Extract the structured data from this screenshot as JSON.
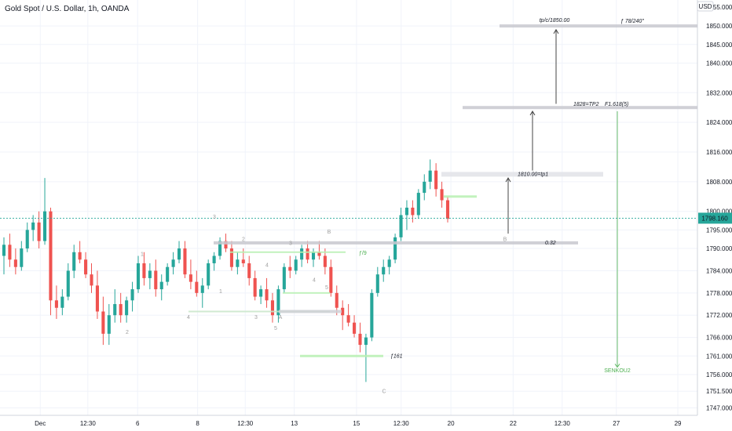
{
  "header": {
    "title": "Gold Spot / U.S. Dollar, 1h, OANDA"
  },
  "chart_data": {
    "type": "candlestick",
    "currency_label": "USD",
    "ylim": [
      1745,
      1857
    ],
    "price_ticks": [
      1850,
      1845,
      1840,
      1832,
      1824,
      1816,
      1808,
      1800,
      1795,
      1790,
      1784,
      1778,
      1772,
      1766,
      1761,
      1756,
      1751.5,
      1747
    ],
    "price_tick_labels": [
      "1850.000",
      "1845.000",
      "1840.000",
      "1832.000",
      "1824.000",
      "1816.000",
      "1808.000",
      "1800.000",
      "1795.000",
      "1790.000",
      "1784.000",
      "1778.000",
      "1772.000",
      "1766.000",
      "1761.000",
      "1756.000",
      "1751.500",
      "1747.000"
    ],
    "top_partial_label": "1855.000",
    "current_price": "1798.160",
    "current_price_value": 1798.16,
    "time_ticks": [
      "Dec",
      "12:30",
      "6",
      "8",
      "12:30",
      "13",
      "15",
      "12:30",
      "20",
      "22",
      "12:30",
      "27",
      "29"
    ],
    "time_tick_x": [
      0.055,
      0.12,
      0.188,
      0.27,
      0.335,
      0.402,
      0.487,
      0.548,
      0.616,
      0.701,
      0.768,
      0.842,
      0.926
    ],
    "colors": {
      "up": "#26a69a",
      "down": "#ef5350",
      "level": "#c8c8cf",
      "green_level": "#b7f0b1",
      "fib": "#4caf50"
    },
    "levels": [
      {
        "label": "tp/c/1850.00",
        "price": 1850.0
      },
      {
        "label": "ƒ 78/240\"",
        "price": 1850.0
      },
      {
        "label": "1828=TP2",
        "price": 1828.0
      },
      {
        "label": "F1.618(5)",
        "price": 1828.0
      },
      {
        "label": "1810.00=tp1",
        "price": 1810.0
      },
      {
        "label": "0.32",
        "price": 1791.5
      },
      {
        "label": "ƒ/9",
        "price": 1789.0
      },
      {
        "label": "ƒ161",
        "price": 1761.0
      },
      {
        "label": "SENKOU2",
        "price": 1757.0
      }
    ],
    "wave_labels": [
      "3",
      "1",
      "2",
      "4",
      "1",
      "2",
      "3",
      "4",
      "5",
      "3",
      "4",
      "A",
      "B",
      "5",
      "B",
      "C"
    ],
    "candles": [
      {
        "o": 1788,
        "h": 1793,
        "l": 1783,
        "c": 1791
      },
      {
        "o": 1791,
        "h": 1794,
        "l": 1785,
        "c": 1787
      },
      {
        "o": 1787,
        "h": 1790,
        "l": 1783,
        "c": 1785
      },
      {
        "o": 1785,
        "h": 1792,
        "l": 1784,
        "c": 1790
      },
      {
        "o": 1790,
        "h": 1797,
        "l": 1789,
        "c": 1795
      },
      {
        "o": 1795,
        "h": 1799,
        "l": 1792,
        "c": 1797
      },
      {
        "o": 1797,
        "h": 1800,
        "l": 1790,
        "c": 1792
      },
      {
        "o": 1792,
        "h": 1809,
        "l": 1791,
        "c": 1800
      },
      {
        "o": 1800,
        "h": 1801,
        "l": 1772,
        "c": 1776
      },
      {
        "o": 1776,
        "h": 1780,
        "l": 1771,
        "c": 1774
      },
      {
        "o": 1774,
        "h": 1779,
        "l": 1772,
        "c": 1777
      },
      {
        "o": 1777,
        "h": 1786,
        "l": 1776,
        "c": 1784
      },
      {
        "o": 1784,
        "h": 1791,
        "l": 1782,
        "c": 1789
      },
      {
        "o": 1789,
        "h": 1792,
        "l": 1786,
        "c": 1787
      },
      {
        "o": 1787,
        "h": 1789,
        "l": 1782,
        "c": 1783
      },
      {
        "o": 1783,
        "h": 1786,
        "l": 1778,
        "c": 1780
      },
      {
        "o": 1780,
        "h": 1784,
        "l": 1771,
        "c": 1773
      },
      {
        "o": 1773,
        "h": 1777,
        "l": 1764,
        "c": 1767
      },
      {
        "o": 1767,
        "h": 1775,
        "l": 1764,
        "c": 1772
      },
      {
        "o": 1772,
        "h": 1779,
        "l": 1770,
        "c": 1775
      },
      {
        "o": 1775,
        "h": 1778,
        "l": 1770,
        "c": 1772
      },
      {
        "o": 1772,
        "h": 1777,
        "l": 1770,
        "c": 1776
      },
      {
        "o": 1776,
        "h": 1781,
        "l": 1773,
        "c": 1779
      },
      {
        "o": 1779,
        "h": 1788,
        "l": 1778,
        "c": 1786
      },
      {
        "o": 1786,
        "h": 1789,
        "l": 1780,
        "c": 1782
      },
      {
        "o": 1782,
        "h": 1786,
        "l": 1779,
        "c": 1784
      },
      {
        "o": 1784,
        "h": 1787,
        "l": 1777,
        "c": 1779
      },
      {
        "o": 1779,
        "h": 1783,
        "l": 1776,
        "c": 1781
      },
      {
        "o": 1781,
        "h": 1786,
        "l": 1780,
        "c": 1785
      },
      {
        "o": 1785,
        "h": 1789,
        "l": 1783,
        "c": 1787
      },
      {
        "o": 1787,
        "h": 1792,
        "l": 1786,
        "c": 1790
      },
      {
        "o": 1790,
        "h": 1792,
        "l": 1782,
        "c": 1783
      },
      {
        "o": 1783,
        "h": 1787,
        "l": 1779,
        "c": 1781
      },
      {
        "o": 1781,
        "h": 1784,
        "l": 1777,
        "c": 1778
      },
      {
        "o": 1778,
        "h": 1782,
        "l": 1774,
        "c": 1780
      },
      {
        "o": 1780,
        "h": 1787,
        "l": 1779,
        "c": 1786
      },
      {
        "o": 1786,
        "h": 1789,
        "l": 1784,
        "c": 1788
      },
      {
        "o": 1788,
        "h": 1793,
        "l": 1787,
        "c": 1792
      },
      {
        "o": 1792,
        "h": 1794,
        "l": 1789,
        "c": 1790
      },
      {
        "o": 1790,
        "h": 1792,
        "l": 1784,
        "c": 1785
      },
      {
        "o": 1785,
        "h": 1789,
        "l": 1783,
        "c": 1787
      },
      {
        "o": 1787,
        "h": 1790,
        "l": 1785,
        "c": 1786
      },
      {
        "o": 1786,
        "h": 1788,
        "l": 1780,
        "c": 1782
      },
      {
        "o": 1782,
        "h": 1784,
        "l": 1776,
        "c": 1777
      },
      {
        "o": 1777,
        "h": 1780,
        "l": 1775,
        "c": 1779
      },
      {
        "o": 1779,
        "h": 1782,
        "l": 1774,
        "c": 1776
      },
      {
        "o": 1776,
        "h": 1778,
        "l": 1770,
        "c": 1772
      },
      {
        "o": 1772,
        "h": 1780,
        "l": 1770,
        "c": 1779
      },
      {
        "o": 1779,
        "h": 1786,
        "l": 1778,
        "c": 1785
      },
      {
        "o": 1785,
        "h": 1788,
        "l": 1782,
        "c": 1784
      },
      {
        "o": 1784,
        "h": 1788,
        "l": 1783,
        "c": 1787
      },
      {
        "o": 1787,
        "h": 1791,
        "l": 1785,
        "c": 1790
      },
      {
        "o": 1790,
        "h": 1792,
        "l": 1786,
        "c": 1787
      },
      {
        "o": 1787,
        "h": 1790,
        "l": 1785,
        "c": 1789
      },
      {
        "o": 1789,
        "h": 1792,
        "l": 1787,
        "c": 1788
      },
      {
        "o": 1788,
        "h": 1790,
        "l": 1783,
        "c": 1785
      },
      {
        "o": 1785,
        "h": 1787,
        "l": 1777,
        "c": 1778
      },
      {
        "o": 1778,
        "h": 1780,
        "l": 1772,
        "c": 1774
      },
      {
        "o": 1774,
        "h": 1776,
        "l": 1768,
        "c": 1772
      },
      {
        "o": 1772,
        "h": 1775,
        "l": 1769,
        "c": 1770
      },
      {
        "o": 1770,
        "h": 1772,
        "l": 1766,
        "c": 1767
      },
      {
        "o": 1767,
        "h": 1770,
        "l": 1762,
        "c": 1764
      },
      {
        "o": 1764,
        "h": 1767,
        "l": 1754,
        "c": 1766
      },
      {
        "o": 1766,
        "h": 1779,
        "l": 1765,
        "c": 1778
      },
      {
        "o": 1778,
        "h": 1785,
        "l": 1777,
        "c": 1783
      },
      {
        "o": 1783,
        "h": 1787,
        "l": 1781,
        "c": 1785
      },
      {
        "o": 1785,
        "h": 1788,
        "l": 1783,
        "c": 1787
      },
      {
        "o": 1787,
        "h": 1794,
        "l": 1786,
        "c": 1793
      },
      {
        "o": 1793,
        "h": 1801,
        "l": 1792,
        "c": 1799
      },
      {
        "o": 1799,
        "h": 1803,
        "l": 1795,
        "c": 1801
      },
      {
        "o": 1801,
        "h": 1803,
        "l": 1797,
        "c": 1799
      },
      {
        "o": 1799,
        "h": 1806,
        "l": 1798,
        "c": 1805
      },
      {
        "o": 1805,
        "h": 1810,
        "l": 1803,
        "c": 1808
      },
      {
        "o": 1808,
        "h": 1814,
        "l": 1806,
        "c": 1811
      },
      {
        "o": 1811,
        "h": 1813,
        "l": 1804,
        "c": 1806
      },
      {
        "o": 1806,
        "h": 1808,
        "l": 1801,
        "c": 1803
      },
      {
        "o": 1803,
        "h": 1804,
        "l": 1797,
        "c": 1798
      }
    ]
  }
}
